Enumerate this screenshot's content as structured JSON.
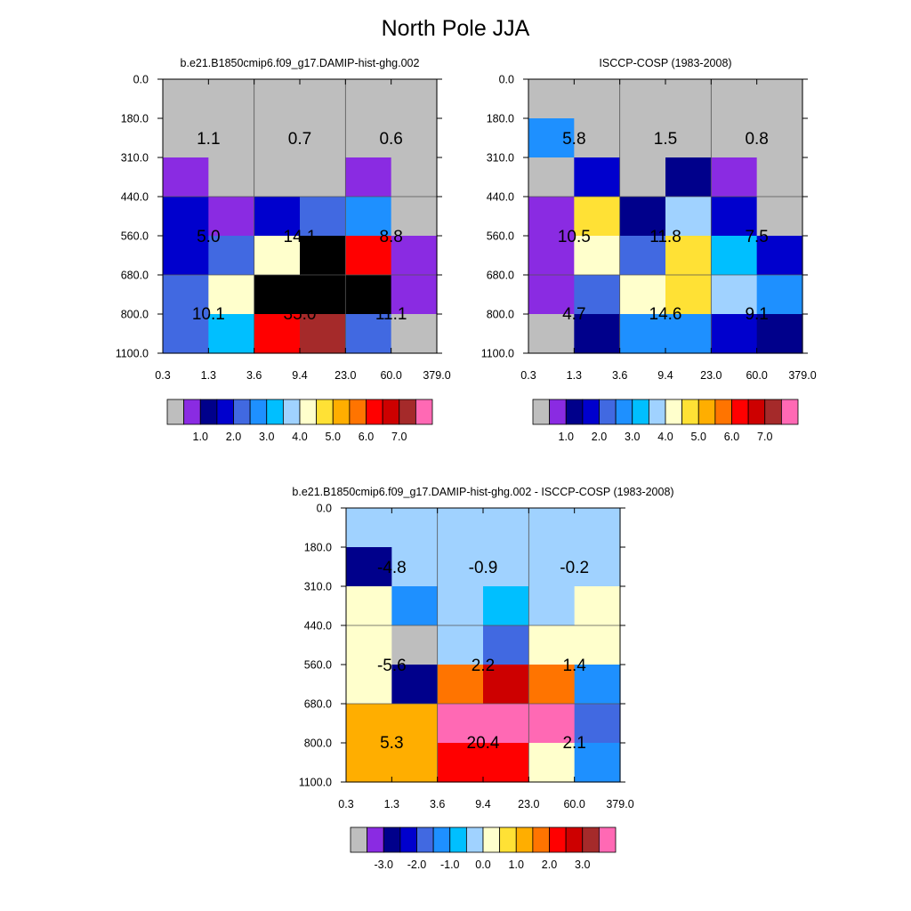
{
  "figure": {
    "title": "North Pole JJA"
  },
  "chart_data": [
    {
      "type": "heatmap",
      "title": "b.e21.B1850cmip6.f09_g17.DAMIP-hist-ghg.002",
      "x_tick_labels": [
        "0.3",
        "1.3",
        "3.6",
        "9.4",
        "23.0",
        "60.0",
        "379.0"
      ],
      "y_tick_labels": [
        "0.0",
        "180.0",
        "310.0",
        "440.0",
        "560.0",
        "680.0",
        "800.0",
        "1100.0"
      ],
      "cell_values_top_to_bottom": [
        [
          0,
          0,
          0,
          0,
          0,
          0
        ],
        [
          0,
          0,
          0,
          0,
          0,
          0
        ],
        [
          1,
          0,
          0,
          0,
          1,
          0
        ],
        [
          3,
          1,
          3,
          4,
          5,
          0
        ],
        [
          3,
          4,
          8,
          17,
          12,
          1
        ],
        [
          4,
          8,
          18,
          18,
          18,
          1
        ],
        [
          4,
          6,
          12,
          14,
          4,
          0
        ]
      ],
      "annotations": [
        {
          "col": 0,
          "row": 0,
          "text": "1.1"
        },
        {
          "col": 1,
          "row": 0,
          "text": "0.7"
        },
        {
          "col": 2,
          "row": 0,
          "text": "0.6"
        },
        {
          "col": 0,
          "row": 1,
          "text": "5.0"
        },
        {
          "col": 1,
          "row": 1,
          "text": "14.1"
        },
        {
          "col": 2,
          "row": 1,
          "text": "8.8"
        },
        {
          "col": 0,
          "row": 2,
          "text": "10.1"
        },
        {
          "col": 1,
          "row": 2,
          "text": "35.0"
        },
        {
          "col": 2,
          "row": 2,
          "text": "11.1"
        }
      ],
      "colorbar": {
        "colors": [
          "#bebebe",
          "#8a2be2",
          "#00008b",
          "#0000cd",
          "#4169e1",
          "#1e90ff",
          "#00bfff",
          "#a0d2ff",
          "#ffffcc",
          "#ffe135",
          "#ffae00",
          "#ff7400",
          "#ff0000",
          "#cd0000",
          "#a52a2a",
          "#ff69b4"
        ],
        "labels": [
          "1.0",
          "2.0",
          "3.0",
          "4.0",
          "5.0",
          "6.0",
          "7.0"
        ],
        "label_positions": [
          2,
          4,
          6,
          8,
          10,
          12,
          14
        ]
      }
    },
    {
      "type": "heatmap",
      "title": "ISCCP-COSP (1983-2008)",
      "x_tick_labels": [
        "0.3",
        "1.3",
        "3.6",
        "9.4",
        "23.0",
        "60.0",
        "379.0"
      ],
      "y_tick_labels": [
        "0.0",
        "180.0",
        "310.0",
        "440.0",
        "560.0",
        "680.0",
        "800.0",
        "1100.0"
      ],
      "cell_values_top_to_bottom": [
        [
          0,
          0,
          0,
          0,
          0,
          0
        ],
        [
          5,
          0,
          0,
          0,
          0,
          0
        ],
        [
          0,
          3,
          0,
          2,
          1,
          0
        ],
        [
          1,
          9,
          2,
          7,
          3,
          0
        ],
        [
          1,
          8,
          4,
          9,
          6,
          3
        ],
        [
          1,
          4,
          8,
          9,
          7,
          5
        ],
        [
          0,
          2,
          5,
          5,
          3,
          2
        ]
      ],
      "annotations": [
        {
          "col": 0,
          "row": 0,
          "text": "5.8"
        },
        {
          "col": 1,
          "row": 0,
          "text": "1.5"
        },
        {
          "col": 2,
          "row": 0,
          "text": "0.8"
        },
        {
          "col": 0,
          "row": 1,
          "text": "10.5"
        },
        {
          "col": 1,
          "row": 1,
          "text": "11.8"
        },
        {
          "col": 2,
          "row": 1,
          "text": "7.5"
        },
        {
          "col": 0,
          "row": 2,
          "text": "4.7"
        },
        {
          "col": 1,
          "row": 2,
          "text": "14.6"
        },
        {
          "col": 2,
          "row": 2,
          "text": "9.1"
        }
      ],
      "colorbar": {
        "colors": [
          "#bebebe",
          "#8a2be2",
          "#00008b",
          "#0000cd",
          "#4169e1",
          "#1e90ff",
          "#00bfff",
          "#a0d2ff",
          "#ffffcc",
          "#ffe135",
          "#ffae00",
          "#ff7400",
          "#ff0000",
          "#cd0000",
          "#a52a2a",
          "#ff69b4"
        ],
        "labels": [
          "1.0",
          "2.0",
          "3.0",
          "4.0",
          "5.0",
          "6.0",
          "7.0"
        ],
        "label_positions": [
          2,
          4,
          6,
          8,
          10,
          12,
          14
        ]
      }
    },
    {
      "type": "heatmap",
      "title": "b.e21.B1850cmip6.f09_g17.DAMIP-hist-ghg.002 - ISCCP-COSP (1983-2008)",
      "x_tick_labels": [
        "0.3",
        "1.3",
        "3.6",
        "9.4",
        "23.0",
        "60.0",
        "379.0"
      ],
      "y_tick_labels": [
        "0.0",
        "180.0",
        "310.0",
        "440.0",
        "560.0",
        "680.0",
        "800.0",
        "1100.0"
      ],
      "cell_values_top_to_bottom": [
        [
          7,
          7,
          7,
          7,
          7,
          7
        ],
        [
          2,
          7,
          7,
          7,
          7,
          7
        ],
        [
          8,
          5,
          7,
          6,
          7,
          8
        ],
        [
          8,
          0,
          7,
          4,
          8,
          8
        ],
        [
          8,
          2,
          11,
          13,
          11,
          5
        ],
        [
          10,
          10,
          15,
          15,
          15,
          4
        ],
        [
          10,
          10,
          12,
          12,
          8,
          5
        ]
      ],
      "annotations": [
        {
          "col": 0,
          "row": 0,
          "text": "-4.8"
        },
        {
          "col": 1,
          "row": 0,
          "text": "-0.9"
        },
        {
          "col": 2,
          "row": 0,
          "text": "-0.2"
        },
        {
          "col": 0,
          "row": 1,
          "text": "-5.6"
        },
        {
          "col": 1,
          "row": 1,
          "text": "2.2"
        },
        {
          "col": 2,
          "row": 1,
          "text": "1.4"
        },
        {
          "col": 0,
          "row": 2,
          "text": "5.3"
        },
        {
          "col": 1,
          "row": 2,
          "text": "20.4"
        },
        {
          "col": 2,
          "row": 2,
          "text": "2.1"
        }
      ],
      "colorbar": {
        "colors": [
          "#bebebe",
          "#8a2be2",
          "#00008b",
          "#0000cd",
          "#4169e1",
          "#1e90ff",
          "#00bfff",
          "#a0d2ff",
          "#ffffcc",
          "#ffe135",
          "#ffae00",
          "#ff7400",
          "#ff0000",
          "#cd0000",
          "#a52a2a",
          "#ff69b4"
        ],
        "labels": [
          "-3.0",
          "-2.0",
          "-1.0",
          "0.0",
          "1.0",
          "2.0",
          "3.0"
        ],
        "label_positions": [
          2,
          4,
          6,
          8,
          10,
          12,
          14
        ]
      }
    }
  ]
}
